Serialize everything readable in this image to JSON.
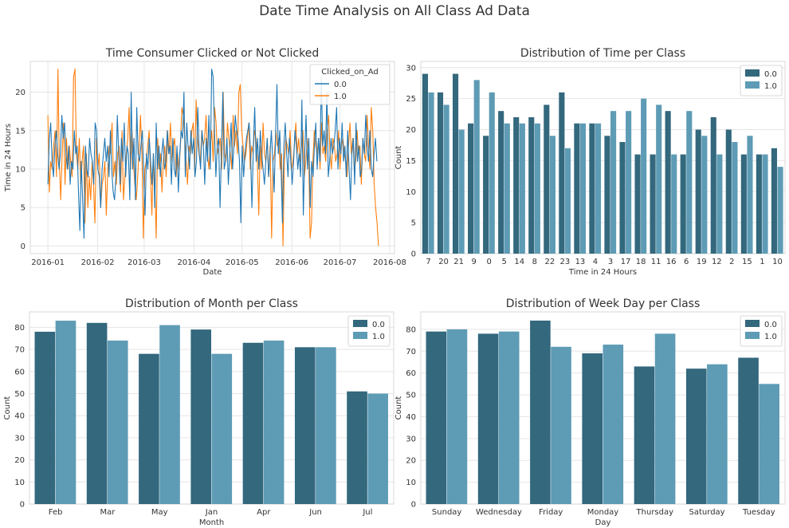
{
  "figure": {
    "title": "Date Time Analysis on All Class Ad Data"
  },
  "colors": {
    "class0": "#33687d",
    "class1": "#5e9bb5",
    "line0": "#1f77b4",
    "line1": "#ff7f0e",
    "grid": "#e6e6e6",
    "frame": "#d0d0d0",
    "text": "#333333"
  },
  "chart_data": [
    {
      "id": "line",
      "type": "line",
      "title": "Time Consumer Clicked or Not Clicked",
      "xlabel": "Date",
      "ylabel": "Time in 24 Hours",
      "xlim": [
        "2015-12-21",
        "2016-08-04"
      ],
      "ylim": [
        -1,
        24
      ],
      "xticks": [
        "2016-01-01",
        "2016-02-01",
        "2016-03-01",
        "2016-04-01",
        "2016-05-01",
        "2016-06-01",
        "2016-07-01",
        "2016-08-01"
      ],
      "xtick_labels": [
        "2016-01",
        "2016-02",
        "2016-03",
        "2016-04",
        "2016-05",
        "2016-06",
        "2016-07",
        "2016-08"
      ],
      "yticks": [
        0,
        5,
        10,
        15,
        20
      ],
      "legend": {
        "title": "Clicked_on_Ad",
        "position": "top-right"
      },
      "grid": true,
      "series": [
        {
          "name": "0.0",
          "color": "#1f77b4",
          "x_start": "2016-01-01",
          "x_end": "2016-07-24",
          "y": [
            8,
            14,
            16,
            11,
            9,
            13,
            15,
            12,
            10,
            12,
            17,
            14,
            16,
            12,
            10,
            13,
            8,
            11,
            10,
            15,
            12,
            13,
            7,
            2,
            11,
            6,
            1,
            13,
            10,
            9,
            14,
            12,
            11,
            8,
            16,
            15,
            10,
            9,
            5,
            10,
            12,
            14,
            11,
            13,
            9,
            15,
            10,
            7,
            6,
            9,
            17,
            12,
            8,
            14,
            11,
            16,
            9,
            13,
            12,
            6,
            20,
            10,
            14,
            6,
            18,
            12,
            11,
            13,
            15,
            9,
            4,
            12,
            10,
            14,
            11,
            8,
            12,
            5,
            16,
            10,
            13,
            9,
            12,
            14,
            10,
            11,
            15,
            12,
            13,
            8,
            14,
            10,
            9,
            13,
            7,
            12,
            15,
            14,
            20,
            9,
            16,
            13,
            10,
            15,
            12,
            14,
            9,
            11,
            18,
            12,
            10,
            15,
            13,
            8,
            14,
            11,
            17,
            10,
            23,
            22,
            15,
            9,
            13,
            14,
            5,
            12,
            20,
            10,
            11,
            14,
            8,
            12,
            16,
            10,
            13,
            17,
            15,
            14,
            11,
            3,
            13,
            9,
            12,
            14,
            15,
            16,
            12,
            5,
            13,
            18,
            11,
            14,
            10,
            15,
            12,
            10,
            8,
            11,
            14,
            9,
            12,
            15,
            11,
            7,
            14,
            21,
            12,
            15,
            10,
            3,
            13,
            16,
            12,
            9,
            14,
            11,
            8,
            11,
            15,
            13,
            10,
            12,
            9,
            19,
            4,
            12,
            17,
            10,
            14,
            5,
            11,
            9,
            13,
            16,
            10,
            14,
            11,
            22,
            13,
            15,
            12,
            20,
            9,
            11,
            14,
            12,
            13,
            15,
            18,
            10,
            14,
            12,
            16,
            11,
            13,
            9,
            15,
            10,
            6,
            12,
            14,
            8,
            16,
            11,
            13,
            9,
            10,
            14,
            12,
            17,
            13,
            11,
            15,
            10,
            9,
            12,
            14,
            11
          ]
        },
        {
          "name": "1.0",
          "color": "#ff7f0e",
          "x_start": "2016-01-01",
          "x_end": "2016-07-25",
          "y": [
            17,
            7,
            11,
            10,
            13,
            15,
            9,
            23,
            11,
            6,
            12,
            16,
            8,
            14,
            10,
            13,
            11,
            9,
            22,
            23,
            12,
            10,
            14,
            8,
            11,
            13,
            3,
            12,
            5,
            9,
            6,
            11,
            8,
            3,
            14,
            10,
            12,
            5,
            8,
            9,
            11,
            4,
            10,
            13,
            12,
            16,
            9,
            11,
            8,
            12,
            13,
            7,
            15,
            6,
            9,
            12,
            14,
            18,
            10,
            15,
            11,
            8,
            6,
            9,
            13,
            17,
            12,
            1,
            10,
            11,
            13,
            15,
            9,
            4,
            12,
            8,
            1,
            14,
            10,
            12,
            7,
            11,
            13,
            9,
            15,
            12,
            16,
            11,
            13,
            14,
            9,
            12,
            10,
            13,
            18,
            17,
            14,
            11,
            8,
            13,
            12,
            15,
            16,
            10,
            19,
            14,
            12,
            11,
            15,
            13,
            14,
            17,
            12,
            10,
            13,
            15,
            11,
            18,
            16,
            12,
            13,
            14,
            10,
            20,
            12,
            11,
            16,
            14,
            12,
            10,
            17,
            13,
            15,
            12,
            20,
            21,
            15,
            13,
            11,
            12,
            14,
            16,
            10,
            13,
            12,
            15,
            14,
            11,
            4,
            13,
            10,
            16,
            12,
            11,
            14,
            9,
            13,
            1,
            11,
            12,
            15,
            13,
            14,
            10,
            12,
            0,
            11,
            14,
            13,
            12,
            15,
            10,
            11,
            13,
            16,
            12,
            14,
            11,
            13,
            15,
            9,
            11,
            14,
            12,
            1,
            3,
            11,
            15,
            13,
            12,
            14,
            10,
            16,
            12,
            13,
            11,
            15,
            17,
            12,
            10,
            14,
            13,
            11,
            12,
            15,
            10,
            13,
            14,
            12,
            11,
            9,
            13,
            16,
            12,
            14,
            10,
            11,
            15,
            12,
            13,
            8,
            14,
            12,
            11,
            17,
            13,
            10,
            18,
            15,
            8,
            5,
            3,
            0
          ]
        }
      ]
    },
    {
      "id": "hours",
      "type": "bar",
      "title": "Distribution of Time per Class",
      "xlabel": "Time in 24 Hours",
      "ylabel": "Count",
      "ylim": [
        0,
        31
      ],
      "yticks": [
        0,
        5,
        10,
        15,
        20,
        25,
        30
      ],
      "legend_position": "top-right",
      "grid": true,
      "categories": [
        "7",
        "20",
        "21",
        "9",
        "0",
        "5",
        "14",
        "8",
        "22",
        "23",
        "13",
        "4",
        "3",
        "17",
        "18",
        "11",
        "16",
        "6",
        "19",
        "12",
        "2",
        "15",
        "1",
        "10"
      ],
      "series": [
        {
          "name": "0.0",
          "values": [
            29,
            26,
            29,
            21,
            19,
            23,
            22,
            22,
            24,
            26,
            21,
            21,
            19,
            18,
            16,
            16,
            23,
            16,
            20,
            22,
            20,
            16,
            16,
            17
          ]
        },
        {
          "name": "1.0",
          "values": [
            26,
            24,
            20,
            28,
            26,
            21,
            21,
            21,
            19,
            17,
            21,
            21,
            23,
            23,
            25,
            24,
            16,
            23,
            19,
            16,
            18,
            19,
            16,
            14
          ]
        }
      ]
    },
    {
      "id": "months",
      "type": "bar",
      "title": "Distribution of Month per Class",
      "xlabel": "Month",
      "ylabel": "Count",
      "ylim": [
        0,
        87
      ],
      "yticks": [
        0,
        10,
        20,
        30,
        40,
        50,
        60,
        70,
        80
      ],
      "legend_position": "top-right",
      "grid": true,
      "categories": [
        "Feb",
        "Mar",
        "May",
        "Jan",
        "Apr",
        "Jun",
        "Jul"
      ],
      "series": [
        {
          "name": "0.0",
          "values": [
            78,
            82,
            68,
            79,
            73,
            71,
            51
          ]
        },
        {
          "name": "1.0",
          "values": [
            83,
            74,
            81,
            68,
            74,
            71,
            50
          ]
        }
      ]
    },
    {
      "id": "weekdays",
      "type": "bar",
      "title": "Distribution of Week Day per Class",
      "xlabel": "Day",
      "ylabel": "Count",
      "ylim": [
        0,
        88
      ],
      "yticks": [
        0,
        10,
        20,
        30,
        40,
        50,
        60,
        70,
        80
      ],
      "legend_position": "top-right",
      "grid": true,
      "categories": [
        "Sunday",
        "Wednesday",
        "Friday",
        "Monday",
        "Thursday",
        "Saturday",
        "Tuesday"
      ],
      "series": [
        {
          "name": "0.0",
          "values": [
            79,
            78,
            84,
            69,
            63,
            62,
            67
          ]
        },
        {
          "name": "1.0",
          "values": [
            80,
            79,
            72,
            73,
            78,
            64,
            55
          ]
        }
      ]
    }
  ]
}
